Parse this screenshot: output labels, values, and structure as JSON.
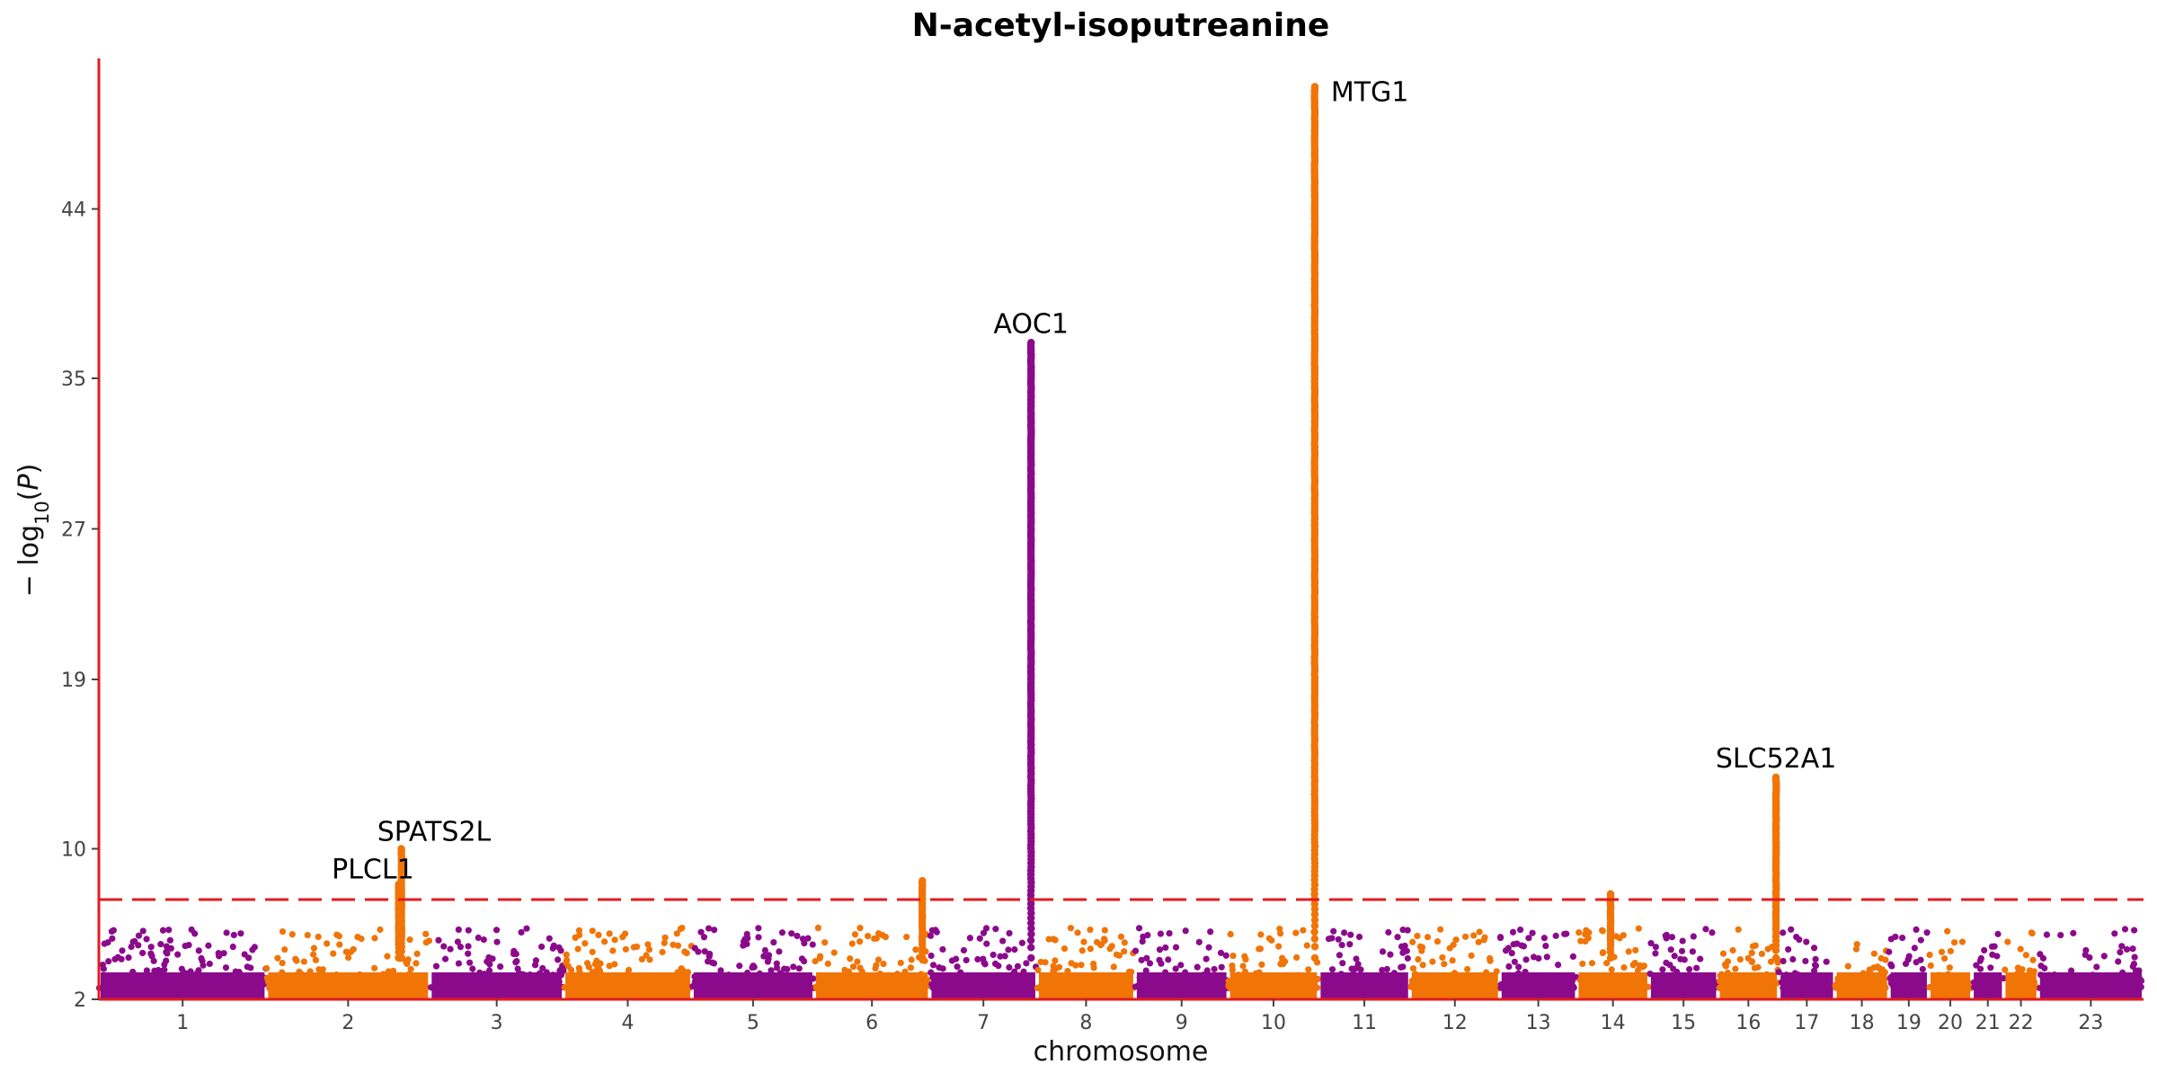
{
  "chart_data": {
    "type": "scatter",
    "subtype": "manhattan",
    "title": "N-acetyl-isoputreanine",
    "xlabel": "chromosome",
    "ylabel": "− log10(P)",
    "ylim": [
      2,
      52
    ],
    "yticks": [
      2,
      10,
      19,
      27,
      35,
      44
    ],
    "grid": false,
    "legend": "none",
    "threshold": {
      "value": 7.3,
      "style": "dashed",
      "color": "#e41a1c"
    },
    "colors": {
      "odd": "#8b0a8b",
      "even": "#f07406",
      "axis": "#e41a1c"
    },
    "chromosomes": [
      {
        "label": "1",
        "length": 248
      },
      {
        "label": "2",
        "length": 242
      },
      {
        "label": "3",
        "length": 198
      },
      {
        "label": "4",
        "length": 190
      },
      {
        "label": "5",
        "length": 181
      },
      {
        "label": "6",
        "length": 171
      },
      {
        "label": "7",
        "length": 159
      },
      {
        "label": "8",
        "length": 145
      },
      {
        "label": "9",
        "length": 138
      },
      {
        "label": "10",
        "length": 134
      },
      {
        "label": "11",
        "length": 135
      },
      {
        "label": "12",
        "length": 133
      },
      {
        "label": "13",
        "length": 114
      },
      {
        "label": "14",
        "length": 107
      },
      {
        "label": "15",
        "length": 102
      },
      {
        "label": "16",
        "length": 90
      },
      {
        "label": "17",
        "length": 83
      },
      {
        "label": "18",
        "length": 80
      },
      {
        "label": "19",
        "length": 59
      },
      {
        "label": "20",
        "length": 64
      },
      {
        "label": "21",
        "length": 47
      },
      {
        "label": "22",
        "length": 51
      },
      {
        "label": "23",
        "length": 156
      }
    ],
    "peaks": [
      {
        "chr": "2",
        "pos": 196,
        "max": 8.1,
        "gene": "PLCL1"
      },
      {
        "chr": "2",
        "pos": 200,
        "max": 10.0,
        "gene": "SPATS2L"
      },
      {
        "chr": "6",
        "pos": 160,
        "max": 8.3
      },
      {
        "chr": "7",
        "pos": 150,
        "max": 36.9,
        "gene": "AOC1"
      },
      {
        "chr": "10",
        "pos": 128,
        "max": 50.5,
        "gene": "MTG1"
      },
      {
        "chr": "14",
        "pos": 50,
        "max": 7.6
      },
      {
        "chr": "16",
        "pos": 86,
        "max": 13.8,
        "gene": "SLC52A1"
      }
    ],
    "annotations": [
      {
        "text": "MTG1",
        "x_chr": "10",
        "y": 50.2
      },
      {
        "text": "AOC1",
        "x_chr": "7",
        "y": 37.9
      },
      {
        "text": "SLC52A1",
        "x_chr": "16",
        "y": 14.8
      },
      {
        "text": "SPATS2L",
        "x_chr": "2",
        "y": 10.9
      },
      {
        "text": "PLCL1",
        "x_chr": "2",
        "y": 8.9
      }
    ]
  }
}
